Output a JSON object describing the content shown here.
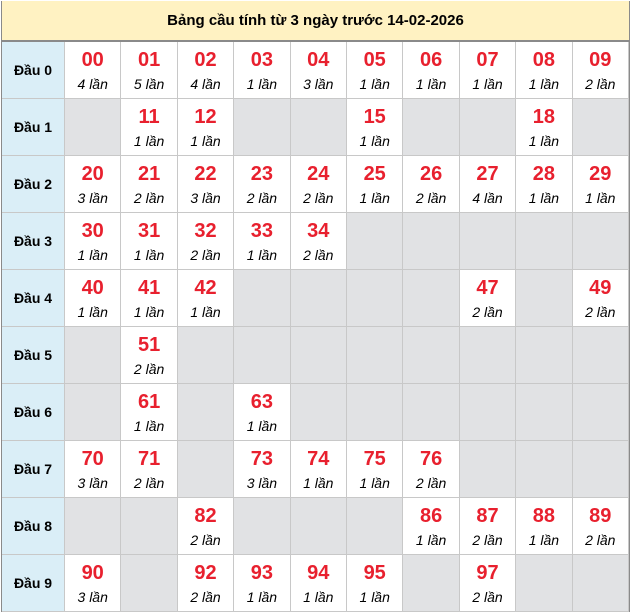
{
  "title": "Bảng cầu tính từ 3 ngày trước 14-02-2026",
  "colors": {
    "number": "#e8202e",
    "header_bg": "#daeef7",
    "title_bg": "#fff2c2",
    "empty_bg": "#e1e2e4"
  },
  "rows": [
    {
      "label": "Đầu 0",
      "cells": [
        {
          "n": "00",
          "c": "4 lần"
        },
        {
          "n": "01",
          "c": "5 lần"
        },
        {
          "n": "02",
          "c": "4 lần"
        },
        {
          "n": "03",
          "c": "1 lần"
        },
        {
          "n": "04",
          "c": "3 lần"
        },
        {
          "n": "05",
          "c": "1 lần"
        },
        {
          "n": "06",
          "c": "1 lần"
        },
        {
          "n": "07",
          "c": "1 lần"
        },
        {
          "n": "08",
          "c": "1 lần"
        },
        {
          "n": "09",
          "c": "2 lần"
        }
      ]
    },
    {
      "label": "Đầu 1",
      "cells": [
        null,
        {
          "n": "11",
          "c": "1 lần"
        },
        {
          "n": "12",
          "c": "1 lần"
        },
        null,
        null,
        {
          "n": "15",
          "c": "1 lần"
        },
        null,
        null,
        {
          "n": "18",
          "c": "1 lần"
        },
        null
      ]
    },
    {
      "label": "Đầu 2",
      "cells": [
        {
          "n": "20",
          "c": "3 lần"
        },
        {
          "n": "21",
          "c": "2 lần"
        },
        {
          "n": "22",
          "c": "3 lần"
        },
        {
          "n": "23",
          "c": "2 lần"
        },
        {
          "n": "24",
          "c": "2 lần"
        },
        {
          "n": "25",
          "c": "1 lần"
        },
        {
          "n": "26",
          "c": "2 lần"
        },
        {
          "n": "27",
          "c": "4 lần"
        },
        {
          "n": "28",
          "c": "1 lần"
        },
        {
          "n": "29",
          "c": "1 lần"
        }
      ]
    },
    {
      "label": "Đầu 3",
      "cells": [
        {
          "n": "30",
          "c": "1 lần"
        },
        {
          "n": "31",
          "c": "1 lần"
        },
        {
          "n": "32",
          "c": "2 lần"
        },
        {
          "n": "33",
          "c": "1 lần"
        },
        {
          "n": "34",
          "c": "2 lần"
        },
        null,
        null,
        null,
        null,
        null
      ]
    },
    {
      "label": "Đầu 4",
      "cells": [
        {
          "n": "40",
          "c": "1 lần"
        },
        {
          "n": "41",
          "c": "1 lần"
        },
        {
          "n": "42",
          "c": "1 lần"
        },
        null,
        null,
        null,
        null,
        {
          "n": "47",
          "c": "2 lần"
        },
        null,
        {
          "n": "49",
          "c": "2 lần"
        }
      ]
    },
    {
      "label": "Đầu 5",
      "cells": [
        null,
        {
          "n": "51",
          "c": "2 lần"
        },
        null,
        null,
        null,
        null,
        null,
        null,
        null,
        null
      ]
    },
    {
      "label": "Đầu 6",
      "cells": [
        null,
        {
          "n": "61",
          "c": "1 lần"
        },
        null,
        {
          "n": "63",
          "c": "1 lần"
        },
        null,
        null,
        null,
        null,
        null,
        null
      ]
    },
    {
      "label": "Đầu 7",
      "cells": [
        {
          "n": "70",
          "c": "3 lần"
        },
        {
          "n": "71",
          "c": "2 lần"
        },
        null,
        {
          "n": "73",
          "c": "3 lần"
        },
        {
          "n": "74",
          "c": "1 lần"
        },
        {
          "n": "75",
          "c": "1 lần"
        },
        {
          "n": "76",
          "c": "2 lần"
        },
        null,
        null,
        null
      ]
    },
    {
      "label": "Đầu 8",
      "cells": [
        null,
        null,
        {
          "n": "82",
          "c": "2 lần"
        },
        null,
        null,
        null,
        {
          "n": "86",
          "c": "1 lần"
        },
        {
          "n": "87",
          "c": "2 lần"
        },
        {
          "n": "88",
          "c": "1 lần"
        },
        {
          "n": "89",
          "c": "2 lần"
        }
      ]
    },
    {
      "label": "Đầu 9",
      "cells": [
        {
          "n": "90",
          "c": "3 lần"
        },
        null,
        {
          "n": "92",
          "c": "2 lần"
        },
        {
          "n": "93",
          "c": "1 lần"
        },
        {
          "n": "94",
          "c": "1 lần"
        },
        {
          "n": "95",
          "c": "1 lần"
        },
        null,
        {
          "n": "97",
          "c": "2 lần"
        },
        null,
        null
      ]
    }
  ]
}
